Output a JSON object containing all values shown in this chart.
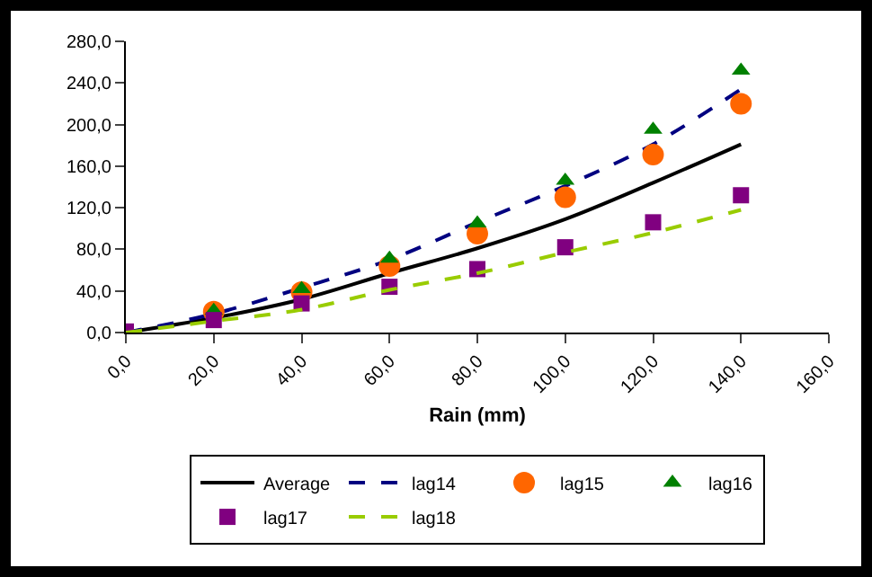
{
  "chart_data": {
    "type": "line",
    "xlabel": "Rain (mm)",
    "x": [
      0,
      20,
      40,
      60,
      80,
      100,
      120,
      140
    ],
    "series": [
      {
        "name": "Average",
        "type": "line",
        "color": "#000000",
        "line_style": "solid",
        "marker": "none",
        "values": [
          0,
          14,
          32,
          57,
          81,
          109,
          144,
          181
        ]
      },
      {
        "name": "lag14",
        "type": "line",
        "color": "#000080",
        "line_style": "dashed",
        "marker": "none",
        "values": [
          0,
          18,
          43,
          70,
          106,
          141,
          181,
          234
        ]
      },
      {
        "name": "lag15",
        "type": "scatter",
        "color": "#ff6600",
        "marker": "circle",
        "values": [
          null,
          20,
          39,
          64,
          95,
          130,
          171,
          220
        ]
      },
      {
        "name": "lag16",
        "type": "scatter",
        "color": "#008000",
        "marker": "triangle",
        "values": [
          null,
          21,
          42,
          71,
          105,
          146,
          195,
          252
        ]
      },
      {
        "name": "lag17",
        "type": "scatter",
        "color": "#800080",
        "marker": "square",
        "values": [
          1,
          12,
          28,
          44,
          61,
          82,
          106,
          132
        ]
      },
      {
        "name": "lag18",
        "type": "line",
        "color": "#99cc00",
        "line_style": "dashed",
        "marker": "none",
        "values": [
          0,
          11,
          22,
          41,
          57,
          77,
          96,
          118
        ]
      }
    ],
    "xlim": [
      0,
      160
    ],
    "xticks": [
      {
        "value": 0,
        "label": "0,0"
      },
      {
        "value": 20,
        "label": "20,0"
      },
      {
        "value": 40,
        "label": "40,0"
      },
      {
        "value": 60,
        "label": "60,0"
      },
      {
        "value": 80,
        "label": "80,0"
      },
      {
        "value": 100,
        "label": "100,0"
      },
      {
        "value": 120,
        "label": "120,0"
      },
      {
        "value": 140,
        "label": "140,0"
      },
      {
        "value": 160,
        "label": "160,0"
      }
    ],
    "ylim": [
      0,
      280
    ],
    "yticks": [
      {
        "value": 0,
        "label": "0,0"
      },
      {
        "value": 40,
        "label": "40,0"
      },
      {
        "value": 80,
        "label": "80,0"
      },
      {
        "value": 120,
        "label": "120,0"
      },
      {
        "value": 160,
        "label": "160,0"
      },
      {
        "value": 200,
        "label": "200,0"
      },
      {
        "value": 240,
        "label": "240,0"
      },
      {
        "value": 280,
        "label": "280,0"
      }
    ],
    "grid": false,
    "legend": "bottom"
  }
}
